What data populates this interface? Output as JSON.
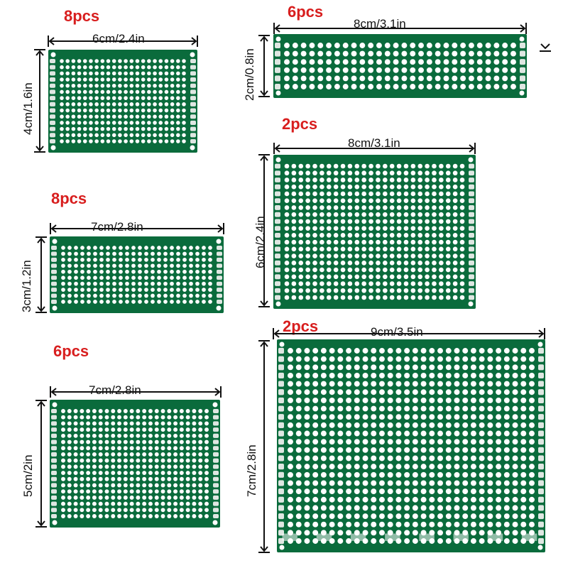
{
  "colors": {
    "board": "#0a6b3c",
    "hole": "#ffffff",
    "pad": "#dfe7e2",
    "quantity": "#d81e1e",
    "arrow": "#111111"
  },
  "boards": [
    {
      "id": "b1",
      "quantity": "8pcs",
      "width_label": "6cm/2.4in",
      "height_label": "4cm/1.6in",
      "cols": 22,
      "rows": 14
    },
    {
      "id": "b2",
      "quantity": "6pcs",
      "width_label": "8cm/3.1in",
      "height_label": "2cm/0.8in",
      "cols": 28,
      "rows": 6
    },
    {
      "id": "b3",
      "quantity": "2pcs",
      "width_label": "8cm/3.1in",
      "height_label": "6cm/2.4in",
      "cols": 26,
      "rows": 20
    },
    {
      "id": "b4",
      "quantity": "8pcs",
      "width_label": "7cm/2.8in",
      "height_label": "3cm/1.2in",
      "cols": 24,
      "rows": 10
    },
    {
      "id": "b5",
      "quantity": "6pcs",
      "width_label": "7cm/2.8in",
      "height_label": "5cm/2in",
      "cols": 24,
      "rows": 18
    },
    {
      "id": "b6",
      "quantity": "2pcs",
      "width_label": "9cm/3.5in",
      "height_label": "7cm/2.8in",
      "cols": 30,
      "rows": 24
    }
  ]
}
